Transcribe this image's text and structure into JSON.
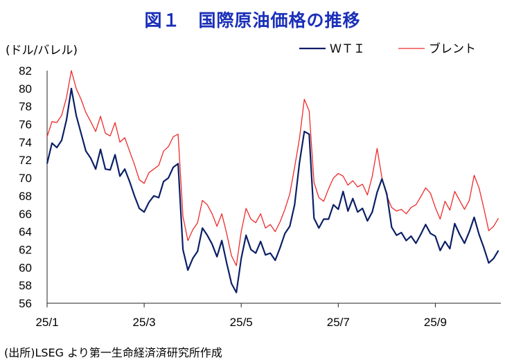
{
  "title": "図１　国際原油価格の推移",
  "source": "(出所)LSEG より第一生命経済済研究所作成",
  "colors": {
    "wti": "#0b1f66",
    "brent": "#ee2a2a",
    "title": "#1a2fb8",
    "axis": "#222222"
  },
  "chart_data": {
    "type": "line",
    "unit_label": "(ドル/バレル)",
    "x_tick_labels": [
      "25/1",
      "25/3",
      "25/5",
      "25/7",
      "25/9"
    ],
    "x_tick_positions": [
      0,
      2,
      4,
      6,
      8
    ],
    "x_domain": [
      0,
      9.35
    ],
    "ylim": [
      56,
      82
    ],
    "y_ticks": [
      56,
      58,
      60,
      62,
      64,
      66,
      68,
      70,
      72,
      74,
      76,
      78,
      80,
      82
    ],
    "legend_position": "top-right",
    "grid": false,
    "series": [
      {
        "name": "ＷＴＩ",
        "color_key": "wti",
        "x": [
          0,
          0.1,
          0.2,
          0.3,
          0.4,
          0.5,
          0.6,
          0.7,
          0.8,
          0.9,
          1.0,
          1.1,
          1.2,
          1.3,
          1.4,
          1.5,
          1.6,
          1.7,
          1.8,
          1.9,
          2.0,
          2.1,
          2.2,
          2.3,
          2.4,
          2.5,
          2.6,
          2.7,
          2.8,
          2.9,
          3.0,
          3.1,
          3.2,
          3.3,
          3.4,
          3.5,
          3.6,
          3.7,
          3.8,
          3.9,
          4.0,
          4.1,
          4.2,
          4.3,
          4.4,
          4.5,
          4.6,
          4.7,
          4.8,
          4.9,
          5.0,
          5.1,
          5.2,
          5.3,
          5.4,
          5.5,
          5.6,
          5.7,
          5.8,
          5.9,
          6.0,
          6.1,
          6.2,
          6.3,
          6.4,
          6.5,
          6.6,
          6.7,
          6.8,
          6.9,
          7.0,
          7.1,
          7.2,
          7.3,
          7.4,
          7.5,
          7.6,
          7.7,
          7.8,
          7.9,
          8.0,
          8.1,
          8.2,
          8.3,
          8.4,
          8.5,
          8.6,
          8.7,
          8.8,
          8.9,
          9.0,
          9.1,
          9.2,
          9.3
        ],
        "values": [
          71.6,
          73.9,
          73.4,
          74.2,
          76.5,
          80.0,
          77.0,
          75.0,
          73.0,
          72.2,
          71.0,
          73.2,
          71.0,
          70.9,
          72.6,
          70.2,
          71.0,
          69.6,
          68.0,
          66.6,
          66.2,
          67.3,
          68.0,
          67.8,
          69.6,
          70.0,
          71.2,
          71.6,
          62.0,
          59.7,
          61.0,
          61.8,
          64.4,
          63.6,
          62.6,
          61.2,
          63.0,
          60.5,
          58.2,
          57.2,
          61.0,
          63.6,
          62.0,
          61.6,
          62.9,
          61.4,
          61.6,
          60.8,
          62.2,
          63.8,
          64.6,
          67.0,
          71.7,
          75.2,
          74.9,
          65.5,
          64.4,
          65.4,
          65.4,
          67.0,
          66.5,
          68.5,
          66.3,
          67.7,
          66.2,
          66.6,
          65.2,
          66.2,
          68.4,
          69.9,
          68.2,
          64.5,
          63.6,
          63.9,
          63.0,
          63.5,
          62.7,
          63.7,
          64.8,
          63.8,
          63.5,
          61.9,
          62.9,
          62.1,
          64.9,
          63.7,
          62.7,
          64.0,
          65.6,
          63.7,
          62.2,
          60.5,
          61.0,
          61.9
        ]
      },
      {
        "name": "ブレント",
        "color_key": "brent",
        "x": [
          0,
          0.1,
          0.2,
          0.3,
          0.4,
          0.5,
          0.6,
          0.7,
          0.8,
          0.9,
          1.0,
          1.1,
          1.2,
          1.3,
          1.4,
          1.5,
          1.6,
          1.7,
          1.8,
          1.9,
          2.0,
          2.1,
          2.2,
          2.3,
          2.4,
          2.5,
          2.6,
          2.7,
          2.8,
          2.9,
          3.0,
          3.1,
          3.2,
          3.3,
          3.4,
          3.5,
          3.6,
          3.7,
          3.8,
          3.9,
          4.0,
          4.1,
          4.2,
          4.3,
          4.4,
          4.5,
          4.6,
          4.7,
          4.8,
          4.9,
          5.0,
          5.1,
          5.2,
          5.3,
          5.4,
          5.5,
          5.6,
          5.7,
          5.8,
          5.9,
          6.0,
          6.1,
          6.2,
          6.3,
          6.4,
          6.5,
          6.6,
          6.7,
          6.8,
          6.9,
          7.0,
          7.1,
          7.2,
          7.3,
          7.4,
          7.5,
          7.6,
          7.7,
          7.8,
          7.9,
          8.0,
          8.1,
          8.2,
          8.3,
          8.4,
          8.5,
          8.6,
          8.7,
          8.8,
          8.9,
          9.0,
          9.1,
          9.2,
          9.3
        ],
        "values": [
          74.6,
          76.3,
          76.2,
          77.0,
          79.0,
          82.0,
          80.0,
          78.8,
          77.3,
          76.3,
          75.2,
          76.9,
          75.0,
          74.7,
          76.2,
          74.0,
          74.5,
          73.0,
          71.5,
          69.8,
          69.4,
          70.6,
          71.0,
          71.4,
          73.0,
          73.5,
          74.6,
          74.9,
          65.7,
          63.0,
          64.2,
          65.0,
          67.5,
          67.0,
          66.0,
          64.6,
          66.0,
          63.8,
          61.3,
          60.2,
          64.0,
          66.6,
          65.4,
          65.0,
          66.0,
          64.4,
          64.8,
          64.0,
          65.1,
          66.5,
          68.2,
          71.2,
          74.4,
          78.8,
          77.5,
          69.5,
          67.8,
          67.4,
          68.8,
          70.0,
          70.5,
          70.2,
          69.2,
          69.7,
          69.0,
          69.3,
          68.1,
          70.2,
          73.3,
          70.0,
          68.0,
          66.7,
          66.3,
          66.5,
          66.0,
          66.7,
          67.0,
          67.9,
          68.9,
          68.3,
          66.7,
          65.4,
          67.4,
          66.4,
          68.5,
          67.5,
          66.5,
          67.5,
          70.3,
          68.9,
          66.6,
          64.1,
          64.6,
          65.5
        ]
      }
    ]
  }
}
